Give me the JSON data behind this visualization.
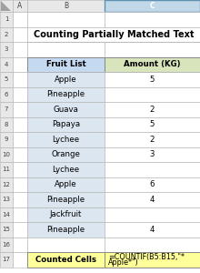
{
  "title": "Counting Partially Matched Text",
  "col_headers": [
    "Fruit List",
    "Amount (KG)"
  ],
  "rows": [
    [
      "Apple",
      "5"
    ],
    [
      "Pineapple",
      ""
    ],
    [
      "Guava",
      "2"
    ],
    [
      "Papaya",
      "5"
    ],
    [
      "Lychee",
      "2"
    ],
    [
      "Orange",
      "3"
    ],
    [
      "Lychee",
      ""
    ],
    [
      "Apple",
      "6"
    ],
    [
      "Pineapple",
      "4"
    ],
    [
      "Jackfruit",
      ""
    ],
    [
      "Pineapple",
      "4"
    ]
  ],
  "footer_left": "Counted Cells",
  "footer_right1": "=COUNTIF(B5:B15,\"*",
  "footer_right2": "Apple*\")",
  "header_col1_bg": "#c5d9f1",
  "header_col2_bg": "#d8e4bc",
  "row_bg": "#dce6f1",
  "footer_bg": "#ffff99",
  "col_letter_bg": "#e8e8e8",
  "row_num_bg": "#e8e8e8",
  "white": "#ffffff",
  "grid_color": "#b0b0b0",
  "title_fontsize": 7.0,
  "cell_fontsize": 6.2,
  "footer_fontsize": 5.8,
  "col_letter_fontsize": 5.5,
  "row_num_fontsize": 5.0,
  "col_c_selected_bg": "#c0d8e8"
}
